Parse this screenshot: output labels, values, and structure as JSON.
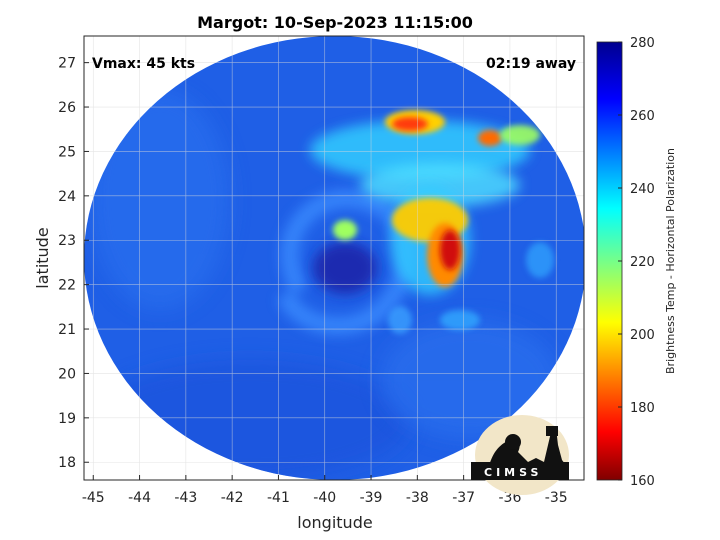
{
  "title": "Margot: 10-Sep-2023 11:15:00",
  "vmax_label": "Vmax: 45 kts",
  "time_away": "02:19 away",
  "axes": {
    "xlabel": "longitude",
    "ylabel": "latitude",
    "x_ticks": [
      "-45",
      "-44",
      "-43",
      "-42",
      "-41",
      "-40",
      "-39",
      "-38",
      "-37",
      "-36",
      "-35"
    ],
    "y_ticks": [
      "27",
      "26",
      "25",
      "24",
      "23",
      "22",
      "21",
      "20",
      "19",
      "18"
    ],
    "grid": true
  },
  "colorbar": {
    "label": "Brightness Temp - Horizontal Polarization",
    "ticks": [
      "280",
      "260",
      "240",
      "220",
      "200",
      "180",
      "160"
    ],
    "colormap": "jet",
    "range": [
      160,
      280
    ]
  },
  "logo": {
    "text": "CIMSS"
  },
  "colors": {
    "background_field": "#1f5fe6",
    "cold_core": "#1a2bb0",
    "warm_band": "#33ccff",
    "hot_core": "#d01010"
  }
}
